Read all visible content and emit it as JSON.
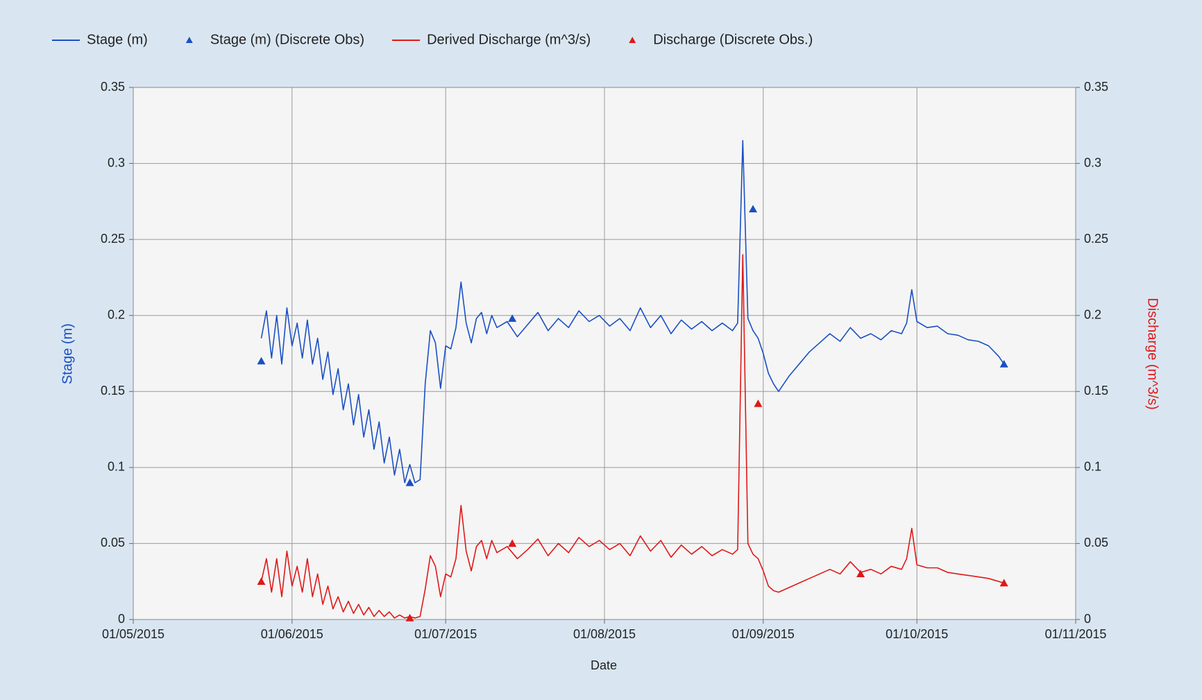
{
  "chart_data": {
    "type": "line",
    "xlabel": "Date",
    "ylabel": "Stage (m)",
    "y2label": "Discharge (m^3/s)",
    "ylabel_color": "#1a4fc4",
    "y2label_color": "#e01818",
    "grid": true,
    "legend": "top",
    "xlim": [
      "2015-05-01",
      "2015-11-01"
    ],
    "xticks": [
      {
        "value": "2015-05-01",
        "label": "01/05/2015"
      },
      {
        "value": "2015-06-01",
        "label": "01/06/2015"
      },
      {
        "value": "2015-07-01",
        "label": "01/07/2015"
      },
      {
        "value": "2015-08-01",
        "label": "01/08/2015"
      },
      {
        "value": "2015-09-01",
        "label": "01/09/2015"
      },
      {
        "value": "2015-10-01",
        "label": "01/10/2015"
      },
      {
        "value": "2015-11-01",
        "label": "01/11/2015"
      }
    ],
    "ylim": [
      0,
      0.35
    ],
    "yticks": [
      0,
      0.05,
      0.1,
      0.15,
      0.2,
      0.25,
      0.3,
      0.35
    ],
    "y2lim": [
      0,
      0.35
    ],
    "y2ticks": [
      0,
      0.05,
      0.1,
      0.15,
      0.2,
      0.25,
      0.3,
      0.35
    ],
    "x": [
      "2015-05-26",
      "2015-05-27",
      "2015-05-28",
      "2015-05-29",
      "2015-05-30",
      "2015-05-31",
      "2015-06-01",
      "2015-06-02",
      "2015-06-03",
      "2015-06-04",
      "2015-06-05",
      "2015-06-06",
      "2015-06-07",
      "2015-06-08",
      "2015-06-09",
      "2015-06-10",
      "2015-06-11",
      "2015-06-12",
      "2015-06-13",
      "2015-06-14",
      "2015-06-15",
      "2015-06-16",
      "2015-06-17",
      "2015-06-18",
      "2015-06-19",
      "2015-06-20",
      "2015-06-21",
      "2015-06-22",
      "2015-06-23",
      "2015-06-24",
      "2015-06-25",
      "2015-06-26",
      "2015-06-27",
      "2015-06-28",
      "2015-06-29",
      "2015-06-30",
      "2015-07-01",
      "2015-07-02",
      "2015-07-03",
      "2015-07-04",
      "2015-07-05",
      "2015-07-06",
      "2015-07-07",
      "2015-07-08",
      "2015-07-09",
      "2015-07-10",
      "2015-07-11",
      "2015-07-13",
      "2015-07-15",
      "2015-07-17",
      "2015-07-19",
      "2015-07-21",
      "2015-07-23",
      "2015-07-25",
      "2015-07-27",
      "2015-07-29",
      "2015-07-31",
      "2015-08-02",
      "2015-08-04",
      "2015-08-06",
      "2015-08-08",
      "2015-08-10",
      "2015-08-12",
      "2015-08-14",
      "2015-08-16",
      "2015-08-18",
      "2015-08-20",
      "2015-08-22",
      "2015-08-24",
      "2015-08-26",
      "2015-08-27",
      "2015-08-28",
      "2015-08-29",
      "2015-08-30",
      "2015-08-31",
      "2015-09-01",
      "2015-09-02",
      "2015-09-03",
      "2015-09-04",
      "2015-09-06",
      "2015-09-08",
      "2015-09-10",
      "2015-09-12",
      "2015-09-14",
      "2015-09-16",
      "2015-09-18",
      "2015-09-20",
      "2015-09-22",
      "2015-09-24",
      "2015-09-26",
      "2015-09-28",
      "2015-09-29",
      "2015-09-30",
      "2015-10-01",
      "2015-10-03",
      "2015-10-05",
      "2015-10-07",
      "2015-10-09",
      "2015-10-11",
      "2015-10-13",
      "2015-10-15",
      "2015-10-17",
      "2015-10-18"
    ],
    "series": [
      {
        "name": "Stage (m)",
        "color": "#1a4fc4",
        "axis": "y",
        "values": [
          0.185,
          0.203,
          0.172,
          0.2,
          0.168,
          0.205,
          0.18,
          0.195,
          0.172,
          0.197,
          0.168,
          0.185,
          0.158,
          0.176,
          0.148,
          0.165,
          0.138,
          0.155,
          0.128,
          0.148,
          0.12,
          0.138,
          0.112,
          0.13,
          0.103,
          0.12,
          0.095,
          0.112,
          0.09,
          0.102,
          0.09,
          0.092,
          0.155,
          0.19,
          0.182,
          0.152,
          0.18,
          0.178,
          0.192,
          0.222,
          0.195,
          0.182,
          0.198,
          0.202,
          0.188,
          0.2,
          0.192,
          0.196,
          0.186,
          0.194,
          0.202,
          0.19,
          0.198,
          0.192,
          0.203,
          0.196,
          0.2,
          0.193,
          0.198,
          0.19,
          0.205,
          0.192,
          0.2,
          0.188,
          0.197,
          0.191,
          0.196,
          0.19,
          0.195,
          0.19,
          0.195,
          0.315,
          0.198,
          0.19,
          0.185,
          0.175,
          0.162,
          0.155,
          0.15,
          0.16,
          0.168,
          0.176,
          0.182,
          0.188,
          0.183,
          0.192,
          0.185,
          0.188,
          0.184,
          0.19,
          0.188,
          0.195,
          0.217,
          0.196,
          0.192,
          0.193,
          0.188,
          0.187,
          0.184,
          0.183,
          0.18,
          0.173,
          0.168
        ]
      },
      {
        "name": "Stage (m) (Discrete Obs)",
        "color": "#1a4fc4",
        "axis": "y",
        "marker": "triangle",
        "x": [
          "2015-05-26",
          "2015-06-24",
          "2015-07-14",
          "2015-08-30",
          "2015-10-18"
        ],
        "values": [
          0.17,
          0.09,
          0.198,
          0.27,
          0.168
        ]
      },
      {
        "name": "Derived Discharge (m^3/s)",
        "color": "#e01818",
        "axis": "y2",
        "values": [
          0.025,
          0.04,
          0.018,
          0.04,
          0.015,
          0.045,
          0.022,
          0.035,
          0.018,
          0.04,
          0.015,
          0.03,
          0.01,
          0.022,
          0.007,
          0.015,
          0.005,
          0.012,
          0.004,
          0.01,
          0.003,
          0.008,
          0.002,
          0.006,
          0.002,
          0.005,
          0.001,
          0.003,
          0.001,
          0.002,
          0.001,
          0.002,
          0.02,
          0.042,
          0.035,
          0.015,
          0.03,
          0.028,
          0.04,
          0.075,
          0.045,
          0.032,
          0.048,
          0.052,
          0.04,
          0.052,
          0.044,
          0.048,
          0.04,
          0.046,
          0.053,
          0.042,
          0.05,
          0.044,
          0.054,
          0.048,
          0.052,
          0.046,
          0.05,
          0.042,
          0.055,
          0.045,
          0.052,
          0.041,
          0.049,
          0.043,
          0.048,
          0.042,
          0.046,
          0.043,
          0.046,
          0.24,
          0.05,
          0.043,
          0.04,
          0.032,
          0.022,
          0.019,
          0.018,
          0.021,
          0.024,
          0.027,
          0.03,
          0.033,
          0.03,
          0.038,
          0.031,
          0.033,
          0.03,
          0.035,
          0.033,
          0.04,
          0.06,
          0.036,
          0.034,
          0.034,
          0.031,
          0.03,
          0.029,
          0.028,
          0.027,
          0.025,
          0.024
        ]
      },
      {
        "name": "Discharge (Discrete Obs.)",
        "color": "#e01818",
        "axis": "y2",
        "marker": "triangle",
        "x": [
          "2015-05-26",
          "2015-06-24",
          "2015-07-14",
          "2015-08-31",
          "2015-09-20",
          "2015-10-18"
        ],
        "values": [
          0.025,
          0.001,
          0.05,
          0.142,
          0.03,
          0.024
        ]
      }
    ]
  }
}
